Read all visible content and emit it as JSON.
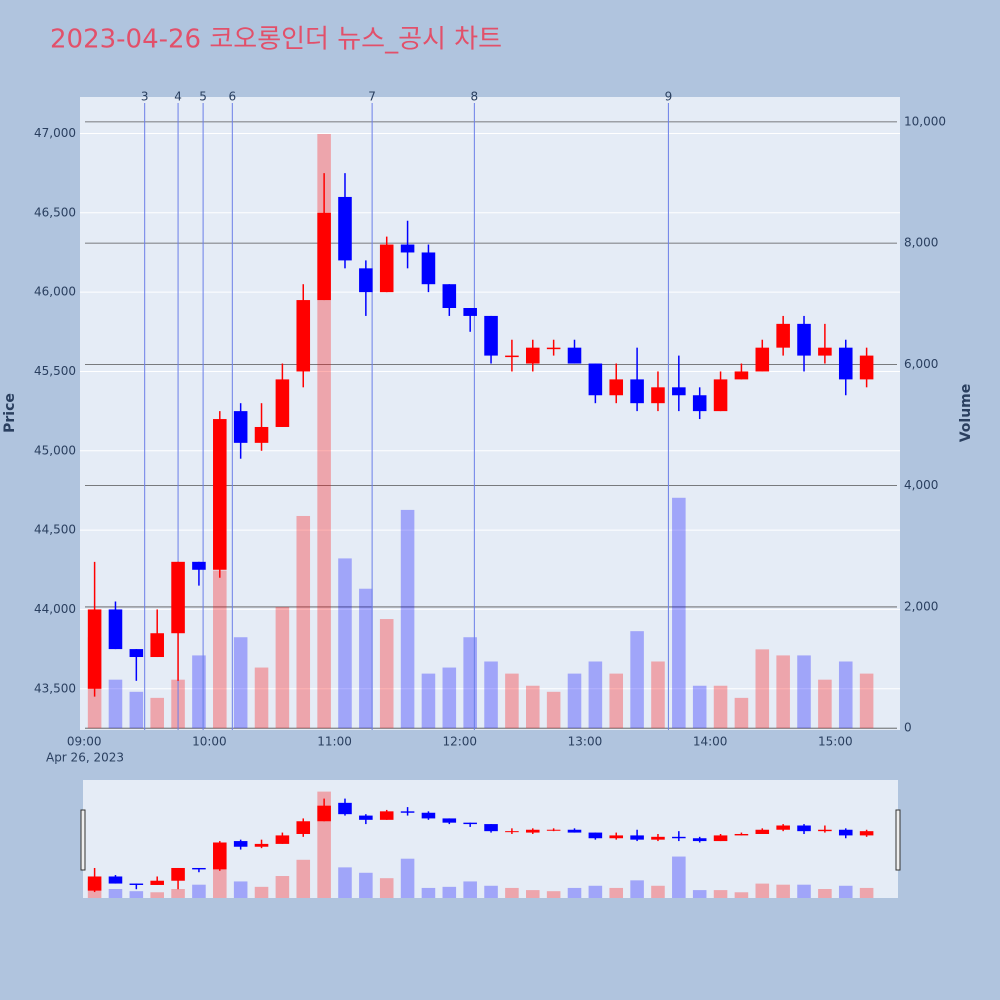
{
  "chart_data": {
    "type": "candlestick",
    "title": "2023-04-26 코오롱인더 뉴스_공시 차트",
    "title_color": "#e2506a",
    "y_label": "Price",
    "y2_label": "Volume",
    "x_sublabel": "Apr 26, 2023",
    "up_color": "#ff0000",
    "down_color": "#0000ff",
    "x": [
      "09:00",
      "09:10",
      "09:20",
      "09:30",
      "09:40",
      "09:50",
      "10:00",
      "10:10",
      "10:20",
      "10:30",
      "10:40",
      "10:50",
      "11:00",
      "11:10",
      "11:20",
      "11:30",
      "11:40",
      "11:50",
      "12:00",
      "12:10",
      "12:20",
      "12:30",
      "12:40",
      "12:50",
      "13:00",
      "13:10",
      "13:20",
      "13:30",
      "13:40",
      "13:50",
      "14:00",
      "14:10",
      "14:20",
      "14:30",
      "14:40",
      "14:50",
      "15:00",
      "15:10"
    ],
    "open": [
      43500,
      44000,
      43750,
      43700,
      43850,
      44300,
      44250,
      45250,
      45050,
      45150,
      45500,
      45950,
      46600,
      46150,
      46000,
      46300,
      46250,
      46050,
      45900,
      45850,
      45600,
      45550,
      45650,
      45650,
      45550,
      45350,
      45450,
      45300,
      45400,
      45350,
      45250,
      45450,
      45500,
      45650,
      45800,
      45600,
      45650,
      45450
    ],
    "high": [
      44300,
      44050,
      43750,
      44000,
      44300,
      44300,
      45250,
      45300,
      45300,
      45550,
      46050,
      46750,
      46750,
      46200,
      46350,
      46450,
      46300,
      46050,
      45900,
      45850,
      45700,
      45700,
      45700,
      45700,
      45550,
      45550,
      45650,
      45500,
      45600,
      45400,
      45500,
      45550,
      45700,
      45850,
      45850,
      45800,
      45700,
      45650
    ],
    "low": [
      43450,
      43750,
      43550,
      43700,
      43550,
      44150,
      44200,
      44950,
      45000,
      45150,
      45400,
      45950,
      46150,
      45850,
      46000,
      46150,
      46000,
      45850,
      45750,
      45550,
      45500,
      45500,
      45600,
      45550,
      45300,
      45300,
      45250,
      45250,
      45250,
      45200,
      45250,
      45450,
      45500,
      45600,
      45500,
      45550,
      45350,
      45400
    ],
    "close": [
      44000,
      43750,
      43700,
      43850,
      44300,
      44250,
      45200,
      45050,
      45150,
      45450,
      45950,
      46500,
      46200,
      46000,
      46300,
      46250,
      46050,
      45900,
      45850,
      45600,
      45600,
      45650,
      45650,
      45550,
      45350,
      45450,
      45300,
      45400,
      45350,
      45250,
      45450,
      45500,
      45650,
      45800,
      45600,
      45650,
      45450,
      45600
    ],
    "volume": [
      1500,
      800,
      600,
      500,
      800,
      1200,
      2600,
      1500,
      1000,
      2000,
      3500,
      9800,
      2800,
      2300,
      1800,
      3600,
      900,
      1000,
      1500,
      1100,
      900,
      700,
      600,
      900,
      1100,
      900,
      1600,
      1100,
      3800,
      700,
      700,
      500,
      1300,
      1200,
      1200,
      800,
      1100,
      900
    ],
    "xlim": [
      "08:58",
      "15:31"
    ],
    "xticks": [
      "09:00",
      "10:00",
      "11:00",
      "12:00",
      "13:00",
      "14:00",
      "15:00"
    ],
    "ylim": [
      43240,
      47230
    ],
    "yticks": [
      {
        "value": 43500,
        "label": "43,500"
      },
      {
        "value": 44000,
        "label": "44,000"
      },
      {
        "value": 44500,
        "label": "44,500"
      },
      {
        "value": 45000,
        "label": "45,000"
      },
      {
        "value": 45500,
        "label": "45,500"
      },
      {
        "value": 46000,
        "label": "46,000"
      },
      {
        "value": 46500,
        "label": "46,500"
      },
      {
        "value": 47000,
        "label": "47,000"
      }
    ],
    "y2lim": [
      -30,
      10410
    ],
    "y2ticks": [
      0,
      {
        "value": 2000,
        "label": "2,000"
      },
      {
        "value": 4000,
        "label": "4,000"
      },
      {
        "value": 6000,
        "label": "6,000"
      },
      {
        "value": 8000,
        "label": "8,000"
      },
      {
        "value": 10000,
        "label": "10,000"
      }
    ],
    "annotations": [
      {
        "x": "09:29",
        "label": "3"
      },
      {
        "x": "09:45",
        "label": "4"
      },
      {
        "x": "09:57",
        "label": "5"
      },
      {
        "x": "10:11",
        "label": "6"
      },
      {
        "x": "11:18",
        "label": "7"
      },
      {
        "x": "12:07",
        "label": "8"
      },
      {
        "x": "13:40",
        "label": "9"
      }
    ]
  }
}
